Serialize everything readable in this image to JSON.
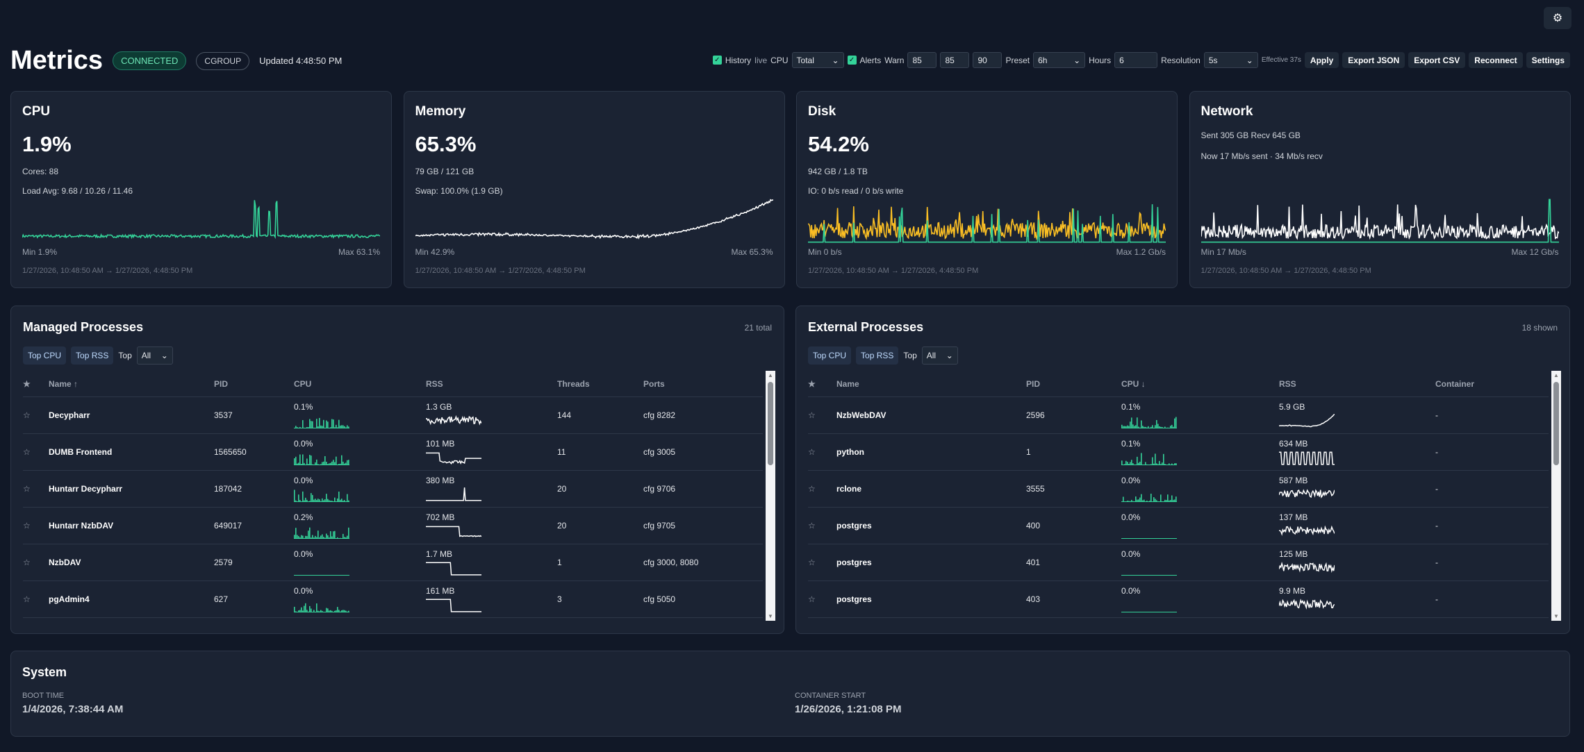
{
  "header": {
    "title": "Metrics",
    "status": "CONNECTED",
    "mode": "CGROUP",
    "updated": "Updated 4:48:50 PM"
  },
  "controls": {
    "history_label": "History",
    "live": "live",
    "cpu_label": "CPU",
    "cpu_select": "Total",
    "alerts_label": "Alerts",
    "warn_label": "Warn",
    "warn": [
      "85",
      "85",
      "90"
    ],
    "preset_label": "Preset",
    "preset": "6h",
    "hours_label": "Hours",
    "hours": "6",
    "resolution_label": "Resolution",
    "resolution": "5s",
    "effective": "Effective 37s",
    "apply": "Apply",
    "export_json": "Export JSON",
    "export_csv": "Export CSV",
    "reconnect": "Reconnect",
    "settings": "Settings"
  },
  "cards": [
    {
      "title": "CPU",
      "value": "1.9%",
      "line1": "Cores: 88",
      "line2": "Load Avg: 9.68 / 10.26 / 11.46",
      "min": "Min 1.9%",
      "max": "Max 63.1%",
      "range": "1/27/2026, 10:48:50 AM → 1/27/2026, 4:48:50 PM"
    },
    {
      "title": "Memory",
      "value": "65.3%",
      "line1": "79 GB / 121 GB",
      "line2": "Swap: 100.0% (1.9 GB)",
      "min": "Min 42.9%",
      "max": "Max 65.3%",
      "range": "1/27/2026, 10:48:50 AM → 1/27/2026, 4:48:50 PM"
    },
    {
      "title": "Disk",
      "value": "54.2%",
      "line1": "942 GB / 1.8 TB",
      "line2": "IO: 0 b/s read / 0 b/s write",
      "min": "Min 0 b/s",
      "max": "Max 1.2 Gb/s",
      "range": "1/27/2026, 10:48:50 AM → 1/27/2026, 4:48:50 PM"
    },
    {
      "title": "Network",
      "line1": "Sent 305 GB   Recv 645 GB",
      "line2": "Now 17 Mb/s sent · 34 Mb/s recv",
      "min": "Min 17 Mb/s",
      "max": "Max 12 Gb/s",
      "range": "1/27/2026, 10:48:50 AM → 1/27/2026, 4:48:50 PM"
    }
  ],
  "colors": {
    "green": "#34d399",
    "amber": "#fbbf24",
    "white": "#ffffff"
  },
  "managed": {
    "title": "Managed Processes",
    "count": "21 total",
    "top_cpu": "Top CPU",
    "top_rss": "Top RSS",
    "top_label": "Top",
    "top_select": "All",
    "columns": [
      "★",
      "Name ↑",
      "PID",
      "CPU",
      "RSS",
      "Threads",
      "Ports"
    ],
    "rows": [
      {
        "name": "Decypharr",
        "pid": "3537",
        "cpu": "0.1%",
        "rss": "1.3 GB",
        "threads": "144",
        "ports": "cfg 8282"
      },
      {
        "name": "DUMB Frontend",
        "pid": "1565650",
        "cpu": "0.0%",
        "rss": "101 MB",
        "threads": "11",
        "ports": "cfg 3005"
      },
      {
        "name": "Huntarr Decypharr",
        "pid": "187042",
        "cpu": "0.0%",
        "rss": "380 MB",
        "threads": "20",
        "ports": "cfg 9706"
      },
      {
        "name": "Huntarr NzbDAV",
        "pid": "649017",
        "cpu": "0.2%",
        "rss": "702 MB",
        "threads": "20",
        "ports": "cfg 9705"
      },
      {
        "name": "NzbDAV",
        "pid": "2579",
        "cpu": "0.0%",
        "rss": "1.7 MB",
        "threads": "1",
        "ports": "cfg 3000, 8080"
      },
      {
        "name": "pgAdmin4",
        "pid": "627",
        "cpu": "0.0%",
        "rss": "161 MB",
        "threads": "3",
        "ports": "cfg 5050"
      }
    ]
  },
  "external": {
    "title": "External Processes",
    "count": "18 shown",
    "top_cpu": "Top CPU",
    "top_rss": "Top RSS",
    "top_label": "Top",
    "top_select": "All",
    "columns": [
      "★",
      "Name",
      "PID",
      "CPU ↓",
      "RSS",
      "Container"
    ],
    "rows": [
      {
        "name": "NzbWebDAV",
        "pid": "2596",
        "cpu": "0.1%",
        "rss": "5.9 GB",
        "container": "-"
      },
      {
        "name": "python",
        "pid": "1",
        "cpu": "0.1%",
        "rss": "634 MB",
        "container": "-"
      },
      {
        "name": "rclone",
        "pid": "3555",
        "cpu": "0.0%",
        "rss": "587 MB",
        "container": "-"
      },
      {
        "name": "postgres",
        "pid": "400",
        "cpu": "0.0%",
        "rss": "137 MB",
        "container": "-"
      },
      {
        "name": "postgres",
        "pid": "401",
        "cpu": "0.0%",
        "rss": "125 MB",
        "container": "-"
      },
      {
        "name": "postgres",
        "pid": "403",
        "cpu": "0.0%",
        "rss": "9.9 MB",
        "container": "-"
      }
    ]
  },
  "system": {
    "title": "System",
    "boot_label": "BOOT TIME",
    "boot": "1/4/2026, 7:38:44 AM",
    "start_label": "CONTAINER START",
    "start": "1/26/2026, 1:21:08 PM"
  }
}
